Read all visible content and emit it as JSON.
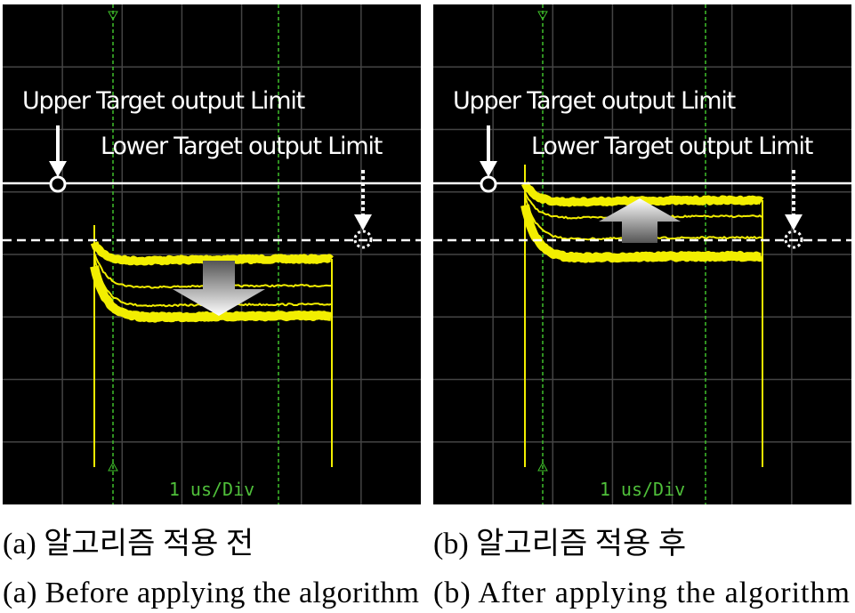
{
  "panels": [
    {
      "upper_label": "Upper Target output Limit",
      "lower_label": "Lower Target output Limit",
      "scale": "1 us/Div",
      "caption_ko": "(a) 알고리즘 적용 전",
      "caption_en": "(a) Before applying the algorithm"
    },
    {
      "upper_label": "Upper Target output Limit",
      "lower_label": "Lower Target output Limit",
      "scale": "1 us/Div",
      "caption_ko": "(b) 알고리즘 적용 후",
      "caption_en": "(b) After applying the algorithm"
    }
  ]
}
